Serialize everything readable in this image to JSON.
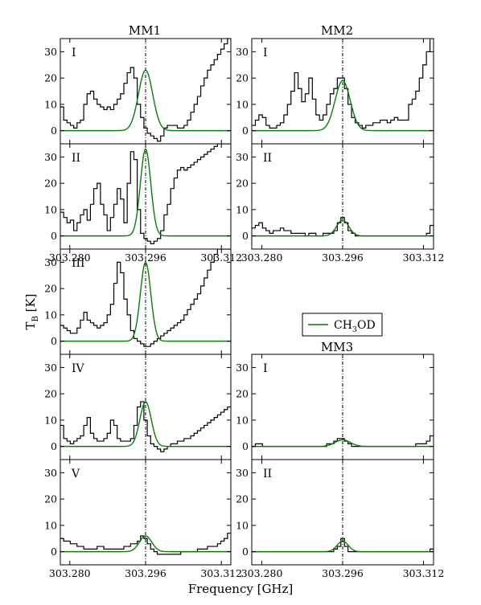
{
  "figure": {
    "ylabel": "T_B [K]",
    "ylabel_main": "T",
    "ylabel_sub": "B",
    "ylabel_unit": " [K]",
    "xlabel": "Frequency [GHz]"
  },
  "legend": {
    "label_prefix": "CH",
    "label_sub": "3",
    "label_suffix": "OD",
    "color": "#0a7d0a",
    "placement": "right-middle"
  },
  "chart_data": {
    "type": "line",
    "xlim": [
      303.278,
      303.314
    ],
    "ylim": [
      -5,
      35
    ],
    "xticks": [
      303.28,
      303.296,
      303.312
    ],
    "xtick_labels": [
      "303.280",
      "303.296",
      "303.312"
    ],
    "yticks": [
      0,
      10,
      20,
      30
    ],
    "ytick_labels": [
      "0",
      "10",
      "20",
      "30"
    ],
    "line_center": 303.296,
    "observed_color": "#000000",
    "model_color": "#0a7d0a",
    "columns": [
      {
        "title": "MM1",
        "panels": [
          "I",
          "II",
          "III",
          "IV",
          "V"
        ]
      },
      {
        "title": "MM2",
        "panels": [
          "I",
          "II"
        ]
      },
      {
        "title": "MM3",
        "panels": [
          "I",
          "II"
        ]
      }
    ],
    "panels": [
      {
        "source": "MM1",
        "label": "I",
        "model_peak": 23,
        "model_width": 0.0015,
        "observed": [
          9,
          4,
          3,
          2,
          1,
          3,
          4,
          10,
          14,
          15,
          12,
          10,
          9,
          8,
          9,
          8,
          10,
          12,
          14,
          18,
          22,
          24,
          20,
          10,
          5,
          1,
          -1,
          -2,
          -3,
          -4,
          -2,
          1,
          2,
          2,
          2,
          1,
          1,
          2,
          4,
          7,
          10,
          13,
          17,
          20,
          23,
          25,
          27,
          29,
          31,
          33,
          35
        ]
      },
      {
        "source": "MM1",
        "label": "II",
        "model_peak": 33,
        "model_width": 0.0011,
        "observed": [
          9,
          7,
          5,
          6,
          2,
          5,
          8,
          10,
          6,
          12,
          18,
          20,
          12,
          8,
          2,
          7,
          12,
          18,
          14,
          5,
          20,
          32,
          29,
          10,
          1,
          -1,
          -2,
          -3,
          -2,
          -1,
          2,
          8,
          12,
          18,
          22,
          25,
          26,
          25,
          26,
          27,
          28,
          29,
          30,
          31,
          32,
          33,
          34,
          35,
          35,
          35,
          35
        ]
      },
      {
        "source": "MM1",
        "label": "III",
        "model_peak": 30,
        "model_width": 0.0011,
        "observed": [
          6,
          5,
          4,
          3,
          3,
          5,
          8,
          11,
          8,
          7,
          6,
          5,
          6,
          7,
          10,
          14,
          22,
          30,
          26,
          16,
          10,
          4,
          1,
          0,
          -1,
          -2,
          -2,
          -1,
          0,
          1,
          2,
          3,
          4,
          5,
          6,
          7,
          8,
          10,
          12,
          14,
          16,
          18,
          21,
          24,
          27,
          30,
          33,
          35,
          35,
          35,
          35
        ]
      },
      {
        "source": "MM1",
        "label": "IV",
        "model_peak": 17,
        "model_width": 0.0012,
        "observed": [
          8,
          3,
          2,
          1,
          2,
          3,
          4,
          8,
          11,
          5,
          3,
          2,
          2,
          3,
          5,
          10,
          8,
          3,
          2,
          2,
          2,
          3,
          8,
          15,
          17,
          10,
          4,
          1,
          0,
          -1,
          -2,
          -1,
          0,
          1,
          1,
          2,
          2,
          3,
          3,
          4,
          5,
          6,
          7,
          8,
          9,
          10,
          11,
          12,
          13,
          14,
          15
        ]
      },
      {
        "source": "MM1",
        "label": "V",
        "model_peak": 6,
        "model_width": 0.0013,
        "observed": [
          5,
          4,
          4,
          3,
          3,
          2,
          2,
          1,
          1,
          1,
          1,
          2,
          2,
          1,
          1,
          1,
          1,
          1,
          1,
          2,
          2,
          3,
          3,
          4,
          6,
          5,
          3,
          1,
          0,
          -1,
          -1,
          -1,
          -1,
          -1,
          -1,
          -1,
          0,
          0,
          0,
          0,
          0,
          1,
          1,
          1,
          2,
          2,
          2,
          3,
          4,
          5,
          7
        ]
      },
      {
        "source": "MM2",
        "label": "I",
        "model_peak": 19,
        "model_width": 0.0015,
        "observed": [
          2,
          4,
          6,
          5,
          2,
          1,
          1,
          2,
          3,
          6,
          10,
          15,
          22,
          16,
          11,
          14,
          20,
          12,
          6,
          4,
          6,
          10,
          14,
          16,
          20,
          20,
          16,
          10,
          5,
          3,
          2,
          1,
          2,
          2,
          3,
          3,
          4,
          4,
          3,
          4,
          5,
          4,
          4,
          4,
          10,
          12,
          15,
          20,
          25,
          30,
          35
        ]
      },
      {
        "source": "MM2",
        "label": "II",
        "model_peak": 6,
        "model_width": 0.0012,
        "observed": [
          3,
          4,
          5,
          3,
          2,
          1,
          2,
          2,
          3,
          2,
          2,
          1,
          1,
          1,
          1,
          0,
          1,
          1,
          0,
          0,
          1,
          1,
          1,
          2,
          5,
          7,
          5,
          2,
          1,
          0,
          0,
          0,
          0,
          0,
          0,
          0,
          0,
          0,
          0,
          0,
          0,
          0,
          0,
          0,
          0,
          0,
          0,
          0,
          0,
          1,
          4
        ]
      },
      {
        "source": "MM3",
        "label": "I",
        "model_peak": 2.5,
        "model_width": 0.0015,
        "observed": [
          0,
          1,
          1,
          0,
          0,
          0,
          0,
          0,
          0,
          0,
          0,
          0,
          0,
          0,
          0,
          0,
          0,
          0,
          0,
          0,
          0,
          1,
          1,
          2,
          3,
          3,
          2,
          1,
          0,
          0,
          0,
          0,
          0,
          0,
          0,
          0,
          0,
          0,
          0,
          0,
          0,
          0,
          0,
          0,
          0,
          0,
          1,
          1,
          1,
          2,
          4
        ]
      },
      {
        "source": "MM3",
        "label": "II",
        "model_peak": 4,
        "model_width": 0.0011,
        "observed": [
          0,
          0,
          0,
          0,
          0,
          0,
          0,
          0,
          0,
          0,
          0,
          0,
          0,
          0,
          0,
          0,
          0,
          0,
          0,
          0,
          0,
          0,
          0,
          1,
          2,
          5,
          2,
          0,
          0,
          0,
          0,
          0,
          0,
          0,
          0,
          0,
          0,
          0,
          0,
          0,
          0,
          0,
          0,
          0,
          0,
          0,
          0,
          0,
          0,
          0,
          1
        ]
      }
    ]
  }
}
